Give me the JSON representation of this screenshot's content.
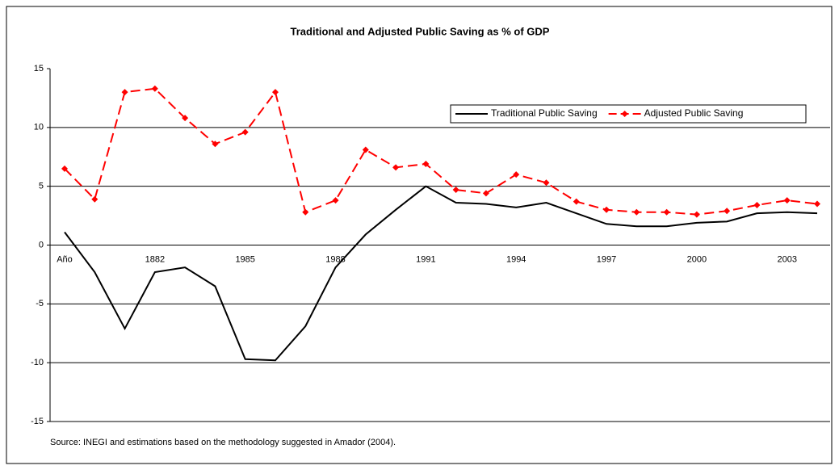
{
  "chart_data": {
    "type": "line",
    "title": "Traditional and Adjusted Public Saving as % of GDP",
    "categories": [
      "Año",
      null,
      null,
      "1882",
      null,
      null,
      "1985",
      null,
      null,
      "1988",
      null,
      null,
      "1991",
      null,
      null,
      "1994",
      null,
      null,
      "1997",
      null,
      null,
      "2000",
      null,
      null,
      "2003",
      null
    ],
    "series": [
      {
        "name": "Traditional Public Saving",
        "color": "#000000",
        "dashed": false,
        "markers": false,
        "values": [
          1.1,
          -2.3,
          -7.1,
          -2.3,
          -1.9,
          -3.5,
          -9.7,
          -9.8,
          -6.9,
          -1.9,
          0.9,
          3.0,
          5.0,
          3.6,
          3.5,
          3.2,
          3.6,
          2.7,
          1.8,
          1.6,
          1.6,
          1.9,
          2.0,
          2.7,
          2.8,
          2.7
        ]
      },
      {
        "name": "Adjusted Public Saving",
        "color": "#ff0000",
        "dashed": true,
        "markers": true,
        "values": [
          6.5,
          3.9,
          13.0,
          13.3,
          10.8,
          8.6,
          9.6,
          13.0,
          2.8,
          3.8,
          8.1,
          6.6,
          6.9,
          4.7,
          4.4,
          6.0,
          5.3,
          3.7,
          3.0,
          2.8,
          2.8,
          2.6,
          2.9,
          3.4,
          3.8,
          3.5
        ]
      }
    ],
    "ylim": [
      -15,
      15
    ],
    "yticks": [
      -15,
      -10,
      -5,
      0,
      5,
      10,
      15
    ],
    "grid": true,
    "legend": "top-right",
    "source": "Source: INEGI  and estimations based on the methodology suggested in Amador (2004)."
  }
}
